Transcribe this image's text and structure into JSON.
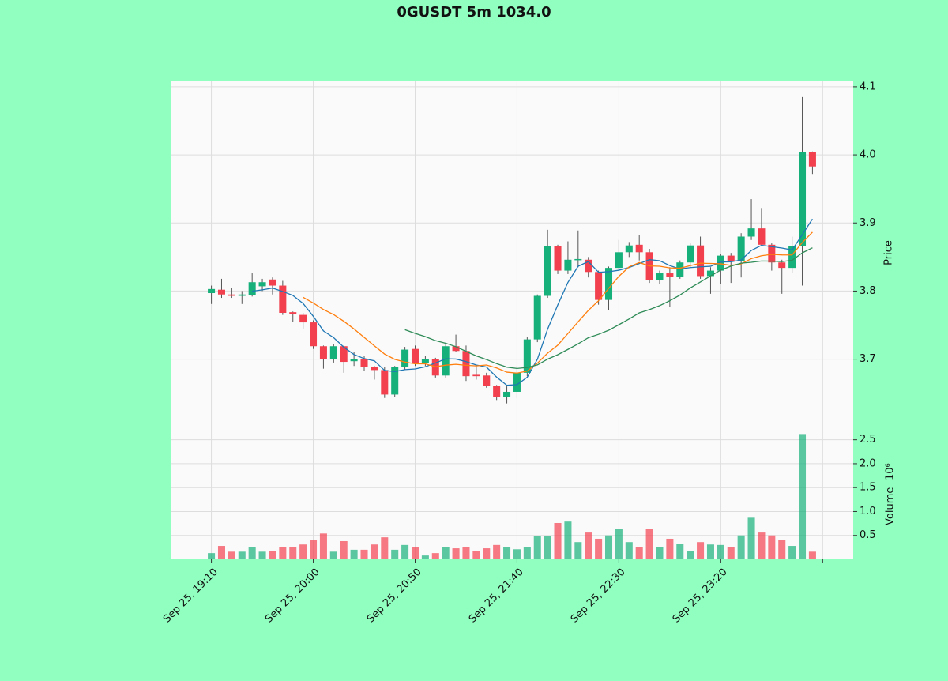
{
  "chart_data": {
    "type": "candlestick",
    "title": "0GUSDT 5m 1034.0",
    "x": [
      0,
      1,
      2,
      3,
      4,
      5,
      6,
      7,
      8,
      9,
      10,
      11,
      12,
      13,
      14,
      15,
      16,
      17,
      18,
      19,
      20,
      21,
      22,
      23,
      24,
      25,
      26,
      27,
      28,
      29,
      30,
      31,
      32,
      33,
      34,
      35,
      36,
      37,
      38,
      39,
      40,
      41,
      42,
      43,
      44,
      45,
      46,
      47,
      48,
      49,
      50,
      51,
      52,
      53,
      54,
      55,
      56,
      57,
      58,
      59
    ],
    "open": [
      3.797,
      3.802,
      3.795,
      3.793,
      3.794,
      3.807,
      3.817,
      3.808,
      3.769,
      3.765,
      3.754,
      3.719,
      3.7,
      3.719,
      3.697,
      3.7,
      3.689,
      3.684,
      3.648,
      3.688,
      3.715,
      3.694,
      3.7,
      3.676,
      3.719,
      3.712,
      3.677,
      3.676,
      3.661,
      3.645,
      3.652,
      3.68,
      3.729,
      3.793,
      3.866,
      3.83,
      3.846,
      3.846,
      3.828,
      3.787,
      3.834,
      3.857,
      3.868,
      3.857,
      3.816,
      3.826,
      3.821,
      3.842,
      3.867,
      3.822,
      3.83,
      3.852,
      3.844,
      3.88,
      3.892,
      3.868,
      3.842,
      3.834,
      3.866,
      4.004
    ],
    "high": [
      3.808,
      3.818,
      3.805,
      3.8,
      3.826,
      3.818,
      3.82,
      3.815,
      3.77,
      3.768,
      3.757,
      3.72,
      3.722,
      3.72,
      3.71,
      3.705,
      3.69,
      3.688,
      3.69,
      3.718,
      3.72,
      3.705,
      3.702,
      3.722,
      3.736,
      3.72,
      3.69,
      3.68,
      3.662,
      3.66,
      3.69,
      3.732,
      3.795,
      3.89,
      3.868,
      3.873,
      3.889,
      3.85,
      3.83,
      3.836,
      3.875,
      3.872,
      3.882,
      3.862,
      3.83,
      3.835,
      3.845,
      3.87,
      3.88,
      3.835,
      3.855,
      3.856,
      3.885,
      3.935,
      3.922,
      3.87,
      3.846,
      3.88,
      4.085,
      4.005
    ],
    "low": [
      3.781,
      3.79,
      3.79,
      3.781,
      3.792,
      3.8,
      3.795,
      3.765,
      3.755,
      3.745,
      3.715,
      3.686,
      3.695,
      3.68,
      3.69,
      3.683,
      3.67,
      3.643,
      3.645,
      3.684,
      3.69,
      3.69,
      3.673,
      3.673,
      3.71,
      3.668,
      3.67,
      3.658,
      3.64,
      3.635,
      3.643,
      3.675,
      3.725,
      3.79,
      3.825,
      3.825,
      3.835,
      3.82,
      3.78,
      3.772,
      3.83,
      3.85,
      3.845,
      3.812,
      3.81,
      3.777,
      3.818,
      3.835,
      3.818,
      3.796,
      3.81,
      3.812,
      3.82,
      3.875,
      3.866,
      3.83,
      3.796,
      3.826,
      3.808,
      3.972
    ],
    "close": [
      3.803,
      3.795,
      3.793,
      3.795,
      3.813,
      3.813,
      3.808,
      3.768,
      3.766,
      3.754,
      3.719,
      3.7,
      3.719,
      3.696,
      3.7,
      3.689,
      3.684,
      3.648,
      3.688,
      3.714,
      3.694,
      3.7,
      3.676,
      3.719,
      3.712,
      3.675,
      3.675,
      3.661,
      3.645,
      3.652,
      3.68,
      3.729,
      3.793,
      3.866,
      3.83,
      3.846,
      3.847,
      3.828,
      3.787,
      3.834,
      3.857,
      3.867,
      3.857,
      3.816,
      3.826,
      3.821,
      3.842,
      3.867,
      3.822,
      3.83,
      3.852,
      3.844,
      3.88,
      3.892,
      3.868,
      3.842,
      3.834,
      3.866,
      4.004,
      3.983
    ],
    "volume": [
      0.13,
      0.28,
      0.16,
      0.16,
      0.26,
      0.16,
      0.18,
      0.26,
      0.26,
      0.31,
      0.41,
      0.54,
      0.16,
      0.38,
      0.2,
      0.2,
      0.31,
      0.46,
      0.2,
      0.3,
      0.26,
      0.08,
      0.13,
      0.25,
      0.23,
      0.26,
      0.18,
      0.23,
      0.3,
      0.26,
      0.21,
      0.26,
      0.48,
      0.48,
      0.76,
      0.79,
      0.36,
      0.56,
      0.43,
      0.5,
      0.64,
      0.36,
      0.26,
      0.63,
      0.26,
      0.43,
      0.33,
      0.18,
      0.36,
      0.31,
      0.3,
      0.26,
      0.5,
      0.87,
      0.56,
      0.5,
      0.4,
      0.28,
      2.62,
      0.16
    ],
    "xlim": [
      -4,
      63
    ],
    "xticks": [
      {
        "value": 0,
        "label": "Sep 25, 19:10"
      },
      {
        "value": 10,
        "label": "Sep 25, 20:00"
      },
      {
        "value": 20,
        "label": "Sep 25, 20:50"
      },
      {
        "value": 30,
        "label": "Sep 25, 21:40"
      },
      {
        "value": 40,
        "label": "Sep 25, 22:30"
      },
      {
        "value": 50,
        "label": "Sep 25, 23:20"
      },
      {
        "value": 60
      }
    ],
    "ylabel": "Price",
    "ylim": [
      3.616,
      4.108
    ],
    "yticks": [
      3.7,
      3.8,
      3.9,
      {
        "value": 4.0,
        "label": "4.0"
      },
      4.1
    ],
    "volume_label": "Volume",
    "volume_scale": "10⁶",
    "volume_ylim": [
      0,
      2.99
    ],
    "volume_yticks": [
      0.5,
      {
        "value": 1.0,
        "label": "1.0"
      },
      1.5,
      {
        "value": 2.0,
        "label": "2.0"
      },
      2.5
    ],
    "up_color": "#16b07a",
    "down_color": "#f2404e",
    "moving_averages": [
      {
        "window": 5,
        "color": "#1f77b4"
      },
      {
        "window": 10,
        "color": "#ff7f0e"
      },
      {
        "window": 20,
        "color": "#2e8b57"
      }
    ],
    "grid": true
  }
}
